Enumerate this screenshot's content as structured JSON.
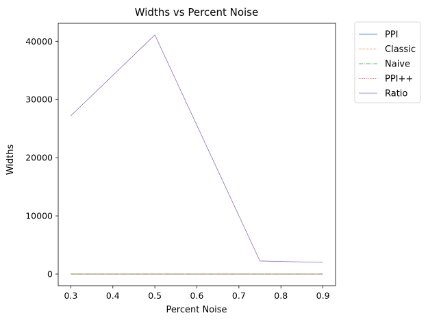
{
  "chart_data": {
    "type": "line",
    "title": "Widths vs Percent Noise",
    "xlabel": "Percent Noise",
    "ylabel": "Widths",
    "x": [
      0.3,
      0.5,
      0.75,
      0.9
    ],
    "xlim": [
      0.27,
      0.93
    ],
    "ylim": [
      -2000,
      43100
    ],
    "xticks": [
      0.3,
      0.4,
      0.5,
      0.6,
      0.7,
      0.8,
      0.9
    ],
    "xtick_labels": [
      "0.3",
      "0.4",
      "0.5",
      "0.6",
      "0.7",
      "0.8",
      "0.9"
    ],
    "yticks": [
      0,
      10000,
      20000,
      30000,
      40000
    ],
    "ytick_labels": [
      "0",
      "10000",
      "20000",
      "30000",
      "40000"
    ],
    "grid": false,
    "legend_position": "outside-right-top",
    "series": [
      {
        "name": "PPI",
        "values": [
          5,
          5,
          5,
          5
        ],
        "color": "#1f77b4",
        "dash": "solid"
      },
      {
        "name": "Classic",
        "values": [
          5,
          5,
          5,
          5
        ],
        "color": "#ff7f0e",
        "dash": "dashed"
      },
      {
        "name": "Naive",
        "values": [
          5,
          5,
          5,
          5
        ],
        "color": "#2ca02c",
        "dash": "dashdot"
      },
      {
        "name": "PPI++",
        "values": [
          5,
          5,
          5,
          5
        ],
        "color": "#d62728",
        "dash": "dotted"
      },
      {
        "name": "Ratio",
        "values": [
          27200,
          41100,
          2250,
          2000
        ],
        "color": "#9467bd",
        "dash": "solid"
      }
    ]
  }
}
